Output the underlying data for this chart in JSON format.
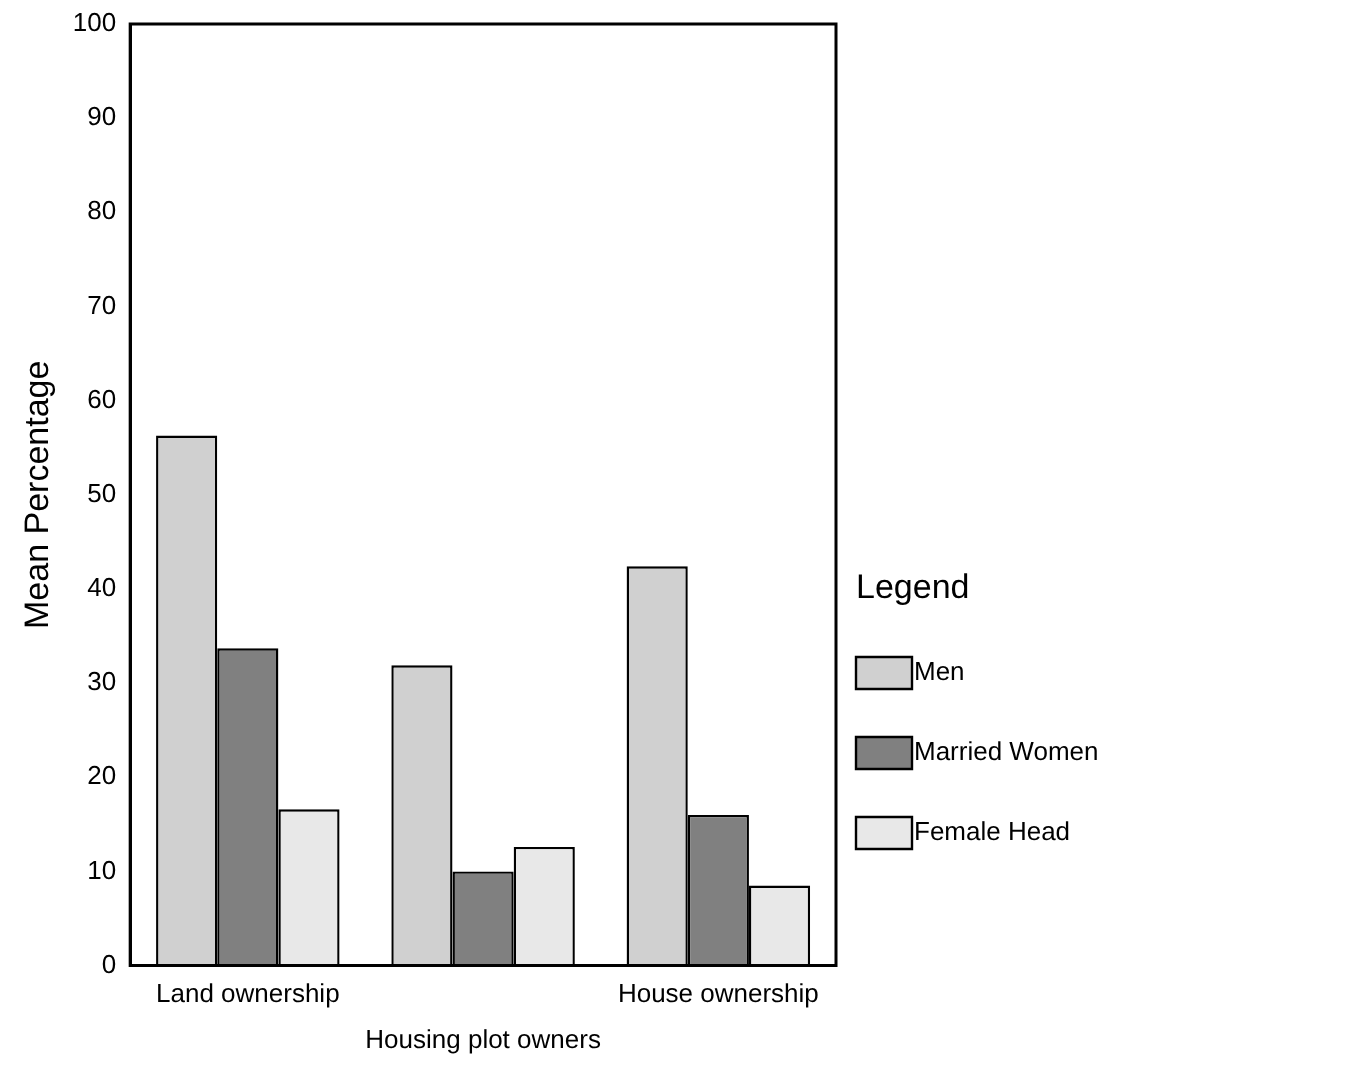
{
  "chart_data": {
    "type": "bar",
    "xlabel": "Housing plot owners",
    "ylabel": "Mean Percentage",
    "legend_title": "Legend",
    "legend": "right",
    "categories": [
      "Land ownership",
      null,
      "House ownership"
    ],
    "series": [
      {
        "name": "Men",
        "color": "#d0d0d0",
        "values": [
          56.3,
          31.9,
          42.4
        ]
      },
      {
        "name": "Married Women",
        "color": "#808080",
        "values": [
          33.7,
          10,
          16
        ]
      },
      {
        "name": "Female Head",
        "color": "#e8e8e8",
        "values": [
          16.6,
          12.6,
          8.5
        ]
      }
    ],
    "ylim": [
      0,
      100
    ],
    "yticks": [
      0,
      10,
      20,
      30,
      40,
      50,
      60,
      70,
      80,
      90,
      100
    ],
    "grid": false
  }
}
